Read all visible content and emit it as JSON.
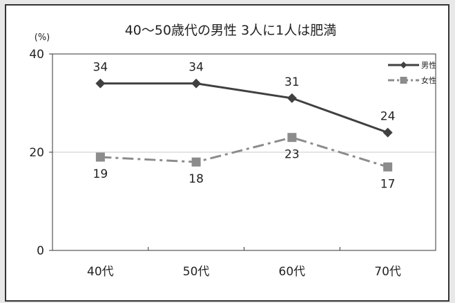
{
  "chart_data": {
    "type": "line",
    "title": "40～50歳代の男性 3人に1人は肥満",
    "ylabel": "(%)",
    "xlabel": "",
    "categories": [
      "40代",
      "50代",
      "60代",
      "70代"
    ],
    "ylim": [
      0,
      40
    ],
    "yticks": [
      0,
      20,
      40
    ],
    "grid": true,
    "legend_position": "top-right",
    "series": [
      {
        "name": "男性",
        "values": [
          34,
          34,
          31,
          24
        ],
        "color": "#404040",
        "marker": "diamond",
        "line_style": "solid"
      },
      {
        "name": "女性",
        "values": [
          19,
          18,
          23,
          17
        ],
        "color": "#8c8c8c",
        "marker": "square",
        "line_style": "dash-dot"
      }
    ],
    "data_labels": {
      "男性": [
        "34",
        "34",
        "31",
        "24"
      ],
      "女性": [
        "19",
        "18",
        "23",
        "17"
      ]
    }
  }
}
